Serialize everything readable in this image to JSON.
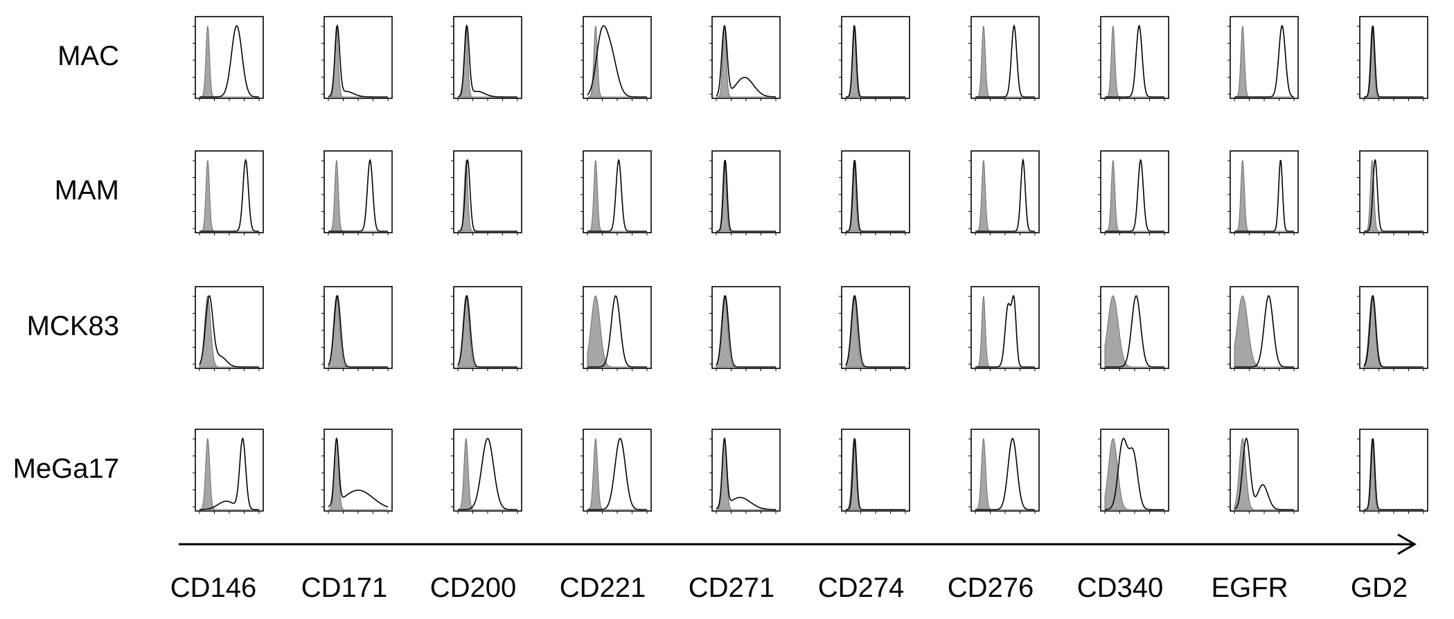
{
  "chart_data": {
    "type": "area",
    "description_note": "",
    "x_axis_direction_arrow": true,
    "rows": [
      "MAC",
      "MAM",
      "MCK83",
      "MeGa17"
    ],
    "columns": [
      "CD146",
      "CD171",
      "CD200",
      "CD221",
      "CD271",
      "CD274",
      "CD276",
      "CD340",
      "EGFR",
      "GD2"
    ],
    "x_scale": "log",
    "x_range_decades": [
      0,
      4
    ],
    "y_range": [
      0,
      1
    ],
    "grid": false,
    "colors": {
      "isotype": "#a6a6a6",
      "stained": "#000000",
      "frame": "#000000"
    },
    "panels": {
      "MAC": {
        "CD146": {
          "iso": {
            "peak": 0.55,
            "width": 0.12
          },
          "stain": [
            {
              "mu": 2.5,
              "sigma": 0.35,
              "amp": 1.0
            }
          ]
        },
        "CD171": {
          "iso": {
            "peak": 0.55,
            "width": 0.12
          },
          "stain": [
            {
              "mu": 0.6,
              "sigma": 0.16,
              "amp": 1.0
            },
            {
              "mu": 1.2,
              "sigma": 0.5,
              "amp": 0.08
            }
          ]
        },
        "CD200": {
          "iso": {
            "peak": 0.55,
            "width": 0.12
          },
          "stain": [
            {
              "mu": 0.6,
              "sigma": 0.16,
              "amp": 1.0
            },
            {
              "mu": 1.3,
              "sigma": 0.5,
              "amp": 0.08
            }
          ]
        },
        "CD221": {
          "iso": {
            "peak": 0.55,
            "width": 0.12
          },
          "stain": [
            {
              "mu": 0.9,
              "sigma": 0.35,
              "amp": 0.95
            },
            {
              "mu": 1.5,
              "sigma": 0.45,
              "amp": 0.95
            }
          ]
        },
        "CD271": {
          "iso": {
            "peak": 0.55,
            "width": 0.12
          },
          "stain": [
            {
              "mu": 0.55,
              "sigma": 0.18,
              "amp": 1.0
            },
            {
              "mu": 1.9,
              "sigma": 0.6,
              "amp": 0.28
            }
          ]
        },
        "CD274": {
          "iso": {
            "peak": 0.55,
            "width": 0.12
          },
          "stain": [
            {
              "mu": 0.58,
              "sigma": 0.13,
              "amp": 1.0
            }
          ]
        },
        "CD276": {
          "iso": {
            "peak": 0.55,
            "width": 0.12
          },
          "stain": [
            {
              "mu": 2.6,
              "sigma": 0.18,
              "amp": 1.0
            }
          ]
        },
        "CD340": {
          "iso": {
            "peak": 0.55,
            "width": 0.12
          },
          "stain": [
            {
              "mu": 2.3,
              "sigma": 0.2,
              "amp": 1.0
            }
          ]
        },
        "EGFR": {
          "iso": {
            "peak": 0.55,
            "width": 0.12
          },
          "stain": [
            {
              "mu": 3.2,
              "sigma": 0.22,
              "amp": 1.0
            }
          ]
        },
        "GD2": {
          "iso": {
            "peak": 0.55,
            "width": 0.12
          },
          "stain": [
            {
              "mu": 0.6,
              "sigma": 0.13,
              "amp": 1.0
            }
          ]
        }
      },
      "MAM": {
        "CD146": {
          "iso": {
            "peak": 0.55,
            "width": 0.12
          },
          "stain": [
            {
              "mu": 3.1,
              "sigma": 0.18,
              "amp": 1.0
            }
          ]
        },
        "CD171": {
          "iso": {
            "peak": 0.55,
            "width": 0.12
          },
          "stain": [
            {
              "mu": 2.8,
              "sigma": 0.18,
              "amp": 1.0
            }
          ]
        },
        "CD200": {
          "iso": {
            "peak": 0.55,
            "width": 0.12
          },
          "stain": [
            {
              "mu": 0.65,
              "sigma": 0.16,
              "amp": 1.0
            }
          ]
        },
        "CD221": {
          "iso": {
            "peak": 0.55,
            "width": 0.12
          },
          "stain": [
            {
              "mu": 2.1,
              "sigma": 0.18,
              "amp": 1.0
            }
          ]
        },
        "CD271": {
          "iso": {
            "peak": 0.55,
            "width": 0.12
          },
          "stain": [
            {
              "mu": 0.6,
              "sigma": 0.13,
              "amp": 1.0
            }
          ]
        },
        "CD274": {
          "iso": {
            "peak": 0.55,
            "width": 0.12
          },
          "stain": [
            {
              "mu": 0.6,
              "sigma": 0.13,
              "amp": 1.0
            }
          ]
        },
        "CD276": {
          "iso": {
            "peak": 0.55,
            "width": 0.12
          },
          "stain": [
            {
              "mu": 3.2,
              "sigma": 0.15,
              "amp": 1.0
            }
          ]
        },
        "CD340": {
          "iso": {
            "peak": 0.55,
            "width": 0.12
          },
          "stain": [
            {
              "mu": 2.4,
              "sigma": 0.18,
              "amp": 1.0
            }
          ]
        },
        "EGFR": {
          "iso": {
            "peak": 0.55,
            "width": 0.12
          },
          "stain": [
            {
              "mu": 3.1,
              "sigma": 0.13,
              "amp": 1.0
            }
          ]
        },
        "GD2": {
          "iso": {
            "peak": 0.55,
            "width": 0.12
          },
          "stain": [
            {
              "mu": 0.75,
              "sigma": 0.15,
              "amp": 1.0
            }
          ]
        }
      },
      "MCK83": {
        "CD146": {
          "iso": {
            "peak": 0.55,
            "width": 0.2
          },
          "stain": [
            {
              "mu": 0.65,
              "sigma": 0.25,
              "amp": 1.0
            },
            {
              "mu": 1.4,
              "sigma": 0.4,
              "amp": 0.15
            }
          ]
        },
        "CD171": {
          "iso": {
            "peak": 0.55,
            "width": 0.2
          },
          "stain": [
            {
              "mu": 0.6,
              "sigma": 0.22,
              "amp": 1.0
            }
          ]
        },
        "CD200": {
          "iso": {
            "peak": 0.55,
            "width": 0.2
          },
          "stain": [
            {
              "mu": 0.6,
              "sigma": 0.22,
              "amp": 1.0
            }
          ]
        },
        "CD221": {
          "iso": {
            "peak": 0.55,
            "width": 0.3
          },
          "stain": [
            {
              "mu": 1.9,
              "sigma": 0.3,
              "amp": 1.0
            }
          ]
        },
        "CD271": {
          "iso": {
            "peak": 0.55,
            "width": 0.2
          },
          "stain": [
            {
              "mu": 0.6,
              "sigma": 0.22,
              "amp": 1.0
            }
          ]
        },
        "CD274": {
          "iso": {
            "peak": 0.55,
            "width": 0.2
          },
          "stain": [
            {
              "mu": 0.6,
              "sigma": 0.22,
              "amp": 1.0
            }
          ]
        },
        "CD276": {
          "iso": {
            "peak": 0.55,
            "width": 0.12
          },
          "stain": [
            {
              "mu": 2.2,
              "sigma": 0.2,
              "amp": 0.95
            },
            {
              "mu": 2.6,
              "sigma": 0.15,
              "amp": 0.95
            }
          ]
        },
        "CD340": {
          "iso": {
            "peak": 0.55,
            "width": 0.35
          },
          "stain": [
            {
              "mu": 2.1,
              "sigma": 0.3,
              "amp": 1.0
            }
          ]
        },
        "EGFR": {
          "iso": {
            "peak": 0.55,
            "width": 0.35
          },
          "stain": [
            {
              "mu": 2.3,
              "sigma": 0.3,
              "amp": 1.0
            }
          ]
        },
        "GD2": {
          "iso": {
            "peak": 0.55,
            "width": 0.2
          },
          "stain": [
            {
              "mu": 0.6,
              "sigma": 0.2,
              "amp": 1.0
            }
          ]
        }
      },
      "MeGa17": {
        "CD146": {
          "iso": {
            "peak": 0.55,
            "width": 0.14
          },
          "stain": [
            {
              "mu": 2.9,
              "sigma": 0.2,
              "amp": 1.0
            },
            {
              "mu": 1.8,
              "sigma": 0.55,
              "amp": 0.12
            }
          ]
        },
        "CD171": {
          "iso": {
            "peak": 0.55,
            "width": 0.14
          },
          "stain": [
            {
              "mu": 0.55,
              "sigma": 0.15,
              "amp": 1.0
            },
            {
              "mu": 2.0,
              "sigma": 1.0,
              "amp": 0.3
            }
          ]
        },
        "CD200": {
          "iso": {
            "peak": 0.55,
            "width": 0.14
          },
          "stain": [
            {
              "mu": 2.0,
              "sigma": 0.4,
              "amp": 1.0
            }
          ]
        },
        "CD221": {
          "iso": {
            "peak": 0.55,
            "width": 0.14
          },
          "stain": [
            {
              "mu": 2.2,
              "sigma": 0.35,
              "amp": 1.0
            }
          ]
        },
        "CD271": {
          "iso": {
            "peak": 0.55,
            "width": 0.14
          },
          "stain": [
            {
              "mu": 0.55,
              "sigma": 0.15,
              "amp": 1.0
            },
            {
              "mu": 1.6,
              "sigma": 0.7,
              "amp": 0.18
            }
          ]
        },
        "CD274": {
          "iso": {
            "peak": 0.55,
            "width": 0.14
          },
          "stain": [
            {
              "mu": 0.6,
              "sigma": 0.13,
              "amp": 1.0
            }
          ]
        },
        "CD276": {
          "iso": {
            "peak": 0.55,
            "width": 0.14
          },
          "stain": [
            {
              "mu": 2.5,
              "sigma": 0.3,
              "amp": 1.0
            }
          ]
        },
        "CD340": {
          "iso": {
            "peak": 0.55,
            "width": 0.3
          },
          "stain": [
            {
              "mu": 1.2,
              "sigma": 0.3,
              "amp": 0.9
            },
            {
              "mu": 1.9,
              "sigma": 0.3,
              "amp": 0.75
            }
          ]
        },
        "EGFR": {
          "iso": {
            "peak": 0.55,
            "width": 0.22
          },
          "stain": [
            {
              "mu": 0.8,
              "sigma": 0.25,
              "amp": 1.0
            },
            {
              "mu": 1.9,
              "sigma": 0.35,
              "amp": 0.35
            }
          ]
        },
        "GD2": {
          "iso": {
            "peak": 0.55,
            "width": 0.12
          },
          "stain": [
            {
              "mu": 0.6,
              "sigma": 0.13,
              "amp": 1.0
            }
          ]
        }
      }
    }
  }
}
